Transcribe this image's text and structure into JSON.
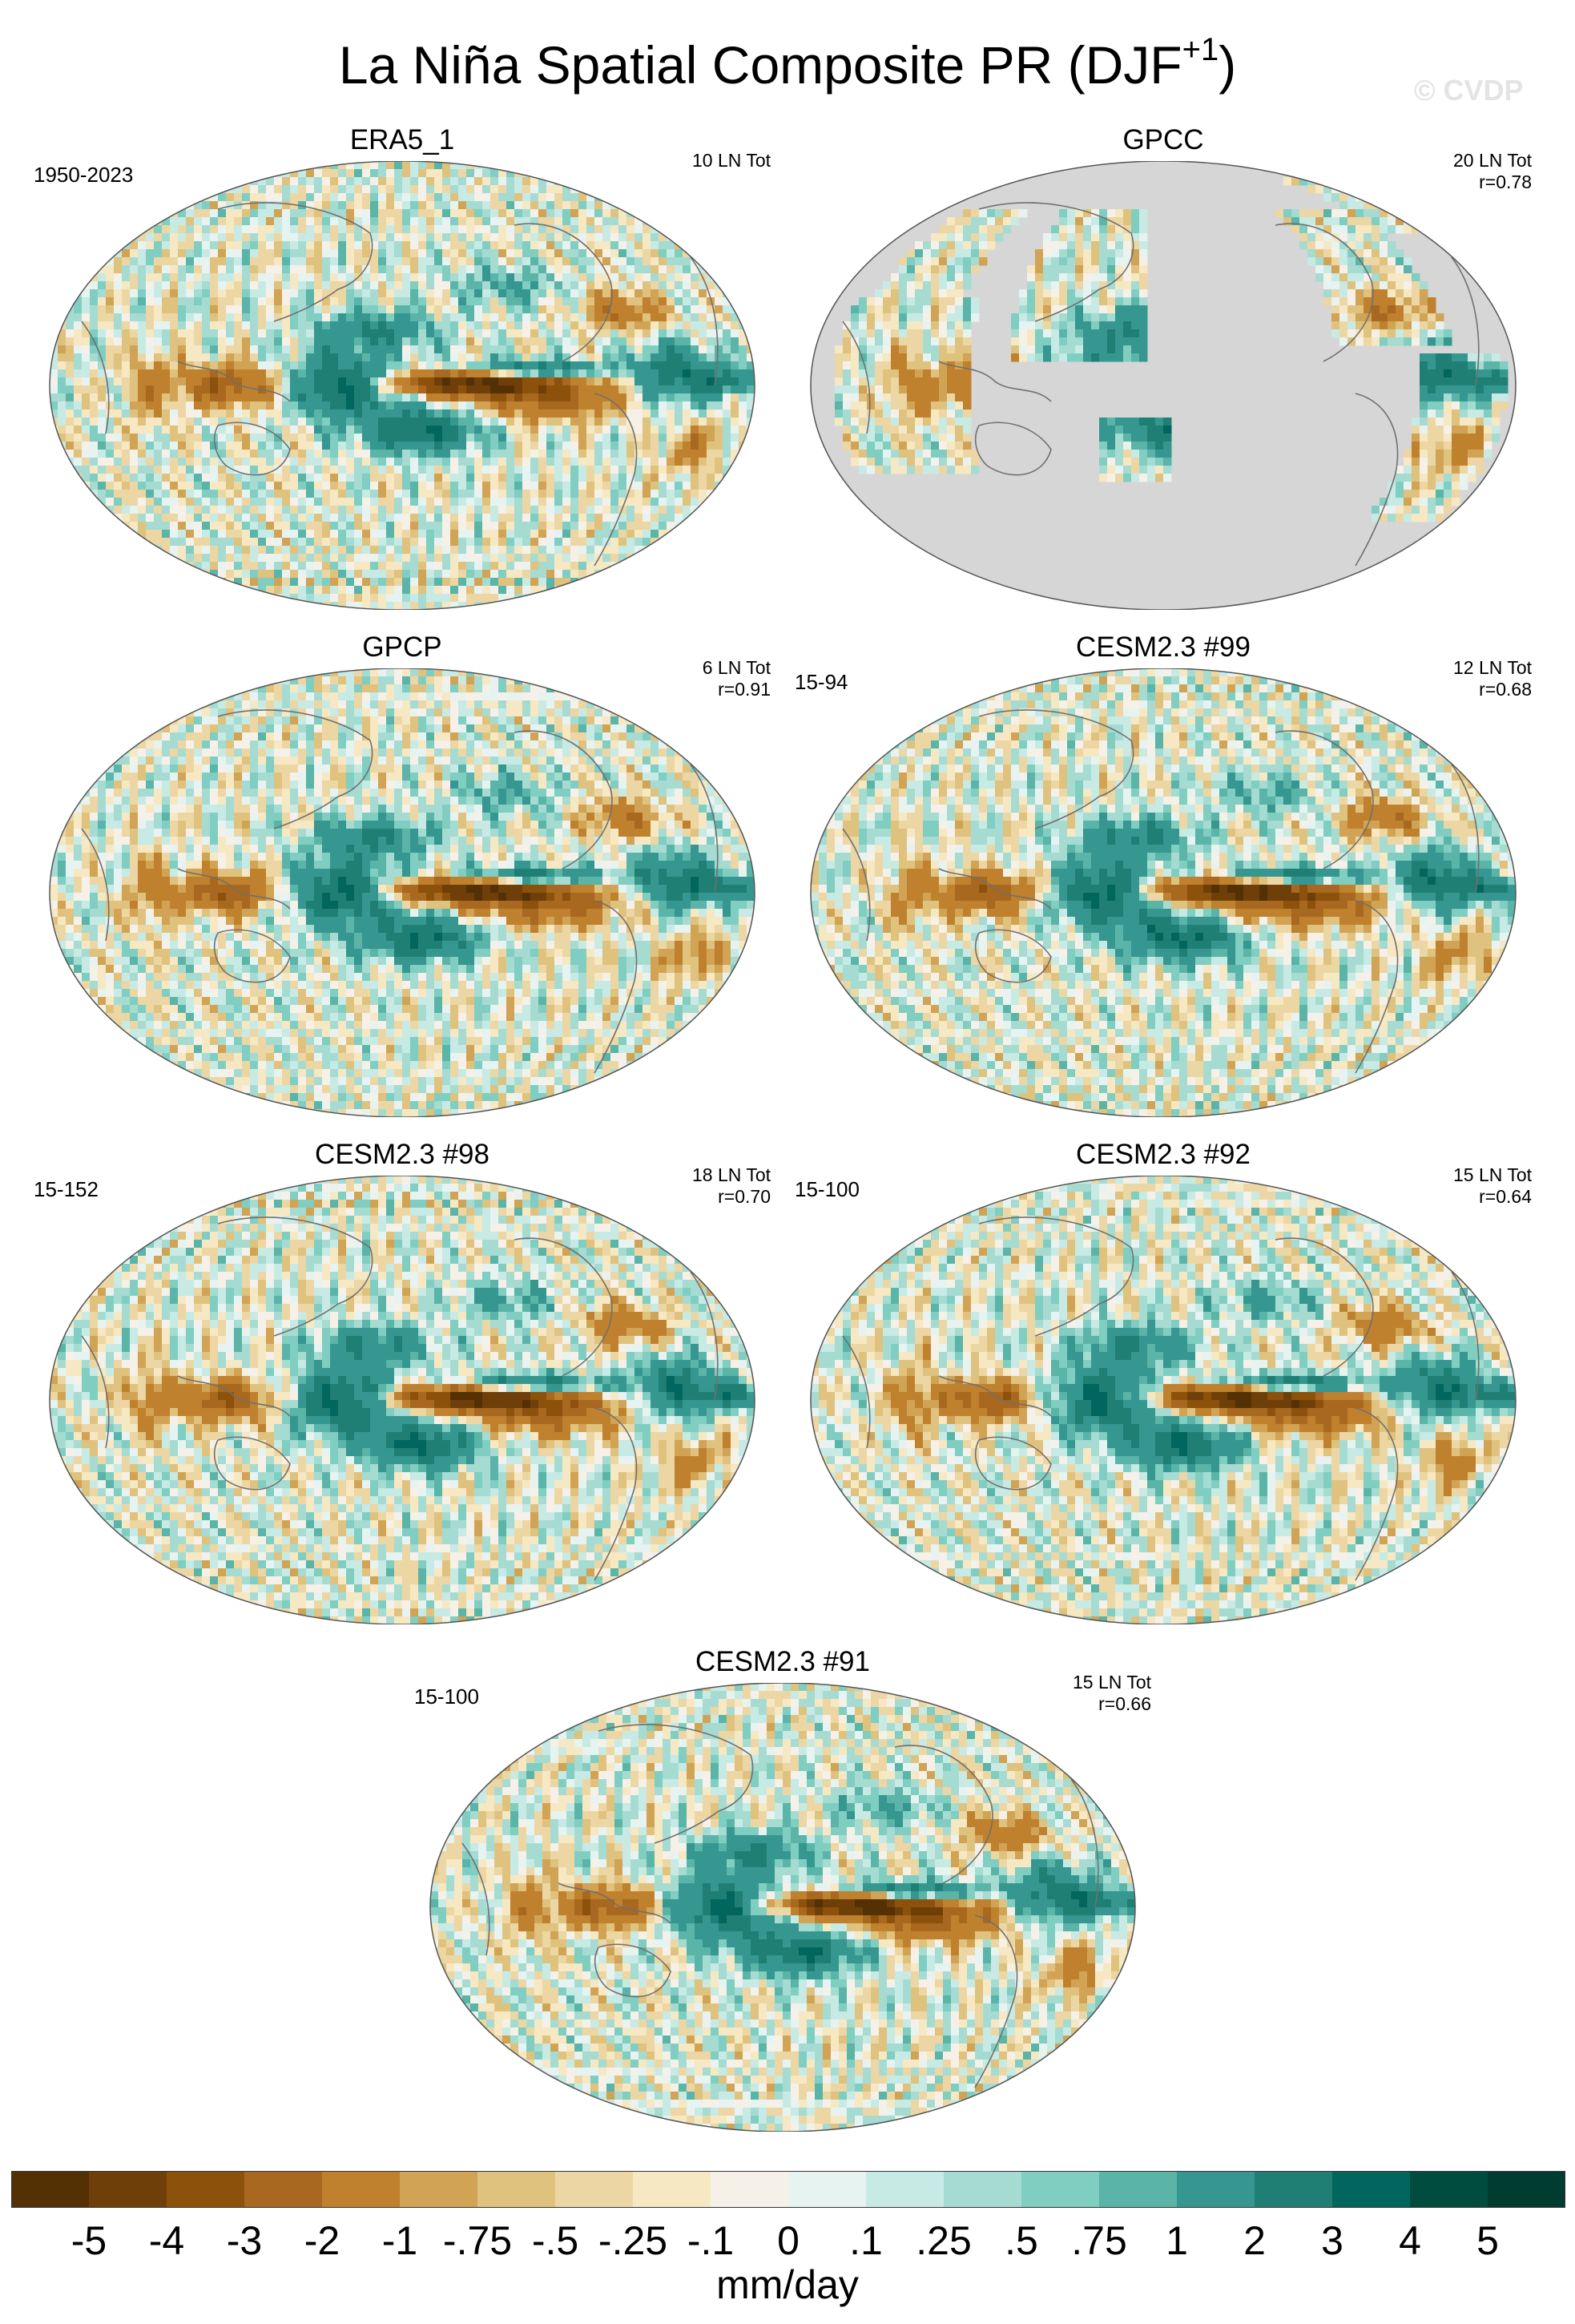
{
  "figure": {
    "title": "La Niña Spatial Composite PR (DJF",
    "title_superscript": "+1",
    "title_suffix": ")",
    "watermark": "© CVDP"
  },
  "panels": [
    {
      "name": "ERA5_1",
      "left_label": "1950-2023",
      "right_line1": "10 LN Tot",
      "right_line2": "",
      "land_masked": false
    },
    {
      "name": "GPCC",
      "left_label": "",
      "right_line1": "20 LN Tot",
      "right_line2": "r=0.78",
      "land_masked": true
    },
    {
      "name": "GPCP",
      "left_label": "",
      "right_line1": "6 LN Tot",
      "right_line2": "r=0.91",
      "land_masked": false
    },
    {
      "name": "CESM2.3 #99",
      "left_label": "15-94",
      "right_line1": "12 LN Tot",
      "right_line2": "r=0.68",
      "land_masked": false
    },
    {
      "name": "CESM2.3 #98",
      "left_label": "15-152",
      "right_line1": "18 LN Tot",
      "right_line2": "r=0.70",
      "land_masked": false
    },
    {
      "name": "CESM2.3 #92",
      "left_label": "15-100",
      "right_line1": "15 LN Tot",
      "right_line2": "r=0.64",
      "land_masked": false
    },
    {
      "name": "CESM2.3 #91",
      "left_label": "15-100",
      "right_line1": "15 LN Tot",
      "right_line2": "r=0.66",
      "land_masked": false
    }
  ],
  "colorbar": {
    "units": "mm/day",
    "tick_labels": [
      "-5",
      "-4",
      "-3",
      "-2",
      "-1",
      "-.75",
      "-.5",
      "-.25",
      "-.1",
      "0",
      ".1",
      ".25",
      ".5",
      ".75",
      "1",
      "2",
      "3",
      "4",
      "5"
    ],
    "colors": [
      "#543005",
      "#6f3f0a",
      "#8c510a",
      "#a8681f",
      "#bf812d",
      "#d1a355",
      "#dfc27d",
      "#ecd7a4",
      "#f6e8c3",
      "#f5f1e8",
      "#e7f3f1",
      "#c7eae5",
      "#a6dbd2",
      "#80cdc1",
      "#5ab4a8",
      "#35978f",
      "#1f7f75",
      "#01665e",
      "#004d40",
      "#003c30"
    ]
  },
  "colors": {
    "ocean_bg": "#f3efe6",
    "masked_gray": "#d6d6d6",
    "coast": "#707070"
  }
}
